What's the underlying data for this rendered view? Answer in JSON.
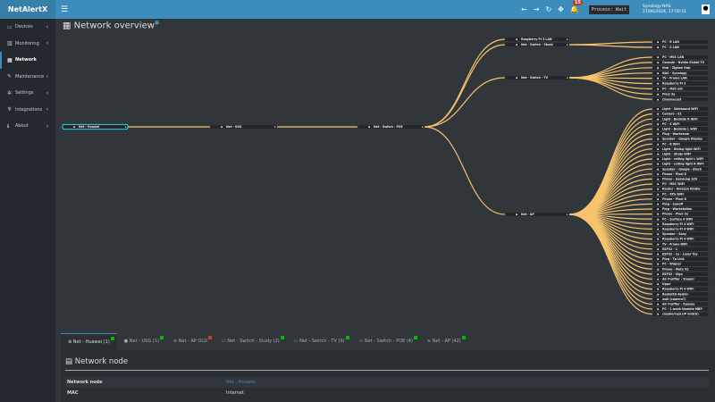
{
  "header": {
    "logo": "NetAlertX",
    "menu_icon": "hamburger-icon",
    "notifications": "15",
    "process": "Process: Wait",
    "host": "Synology-NAS",
    "datetime": "27/06/2024, 17:50:51"
  },
  "sidebar": {
    "items": [
      {
        "label": "Devices",
        "icon": "laptop-icon"
      },
      {
        "label": "Monitoring",
        "icon": "chart-icon"
      },
      {
        "label": "Network",
        "icon": "network-icon",
        "active": true
      },
      {
        "label": "Maintenance",
        "icon": "wrench-icon"
      },
      {
        "label": "Settings",
        "icon": "gear-icon"
      },
      {
        "label": "Integrations",
        "icon": "plug-icon"
      },
      {
        "label": "About",
        "icon": "info-icon"
      }
    ]
  },
  "page": {
    "title": "Network overview"
  },
  "colors": {
    "link": "#f7c46c",
    "accent": "#3c8dbc",
    "selected": "#2bd5e0",
    "online": "#00bb00",
    "offline": "#dd3333"
  },
  "tree": {
    "root": "Net - Huawei",
    "usg": "Net - USG",
    "poe": "Net - Switch - POE",
    "poe_children": [
      "Raspberry Pi 3 LAN",
      "Net - Switch - Study",
      "Net - Switch - TV",
      "Net - AP"
    ],
    "study_children": [
      "PC - R LAN",
      "PC - S LAN"
    ],
    "tv_children": [
      "PC - MSC LAN",
      "Console - Nvidia Shield TV",
      "Hub - Zigbee Hub",
      "NAS - Synology",
      "TV - Frame LAN",
      "Raspberry Pi 3",
      "PC - MSC old",
      "Pixel 3a",
      "Chromecast"
    ],
    "ap_children": [
      "Light - Sideboard WiFi",
      "Camera - E1",
      "Light - Bedside R WiFi",
      "PC - S WiFi",
      "Light - Bedside L WiFi",
      "Plug - Workroom",
      "Speaker - Google Display",
      "PC - R WiFi",
      "Light - Dining light WiFi",
      "Light - Study WiFi",
      "Light - ceiling light L WiFi",
      "Light - ceiling light R WiFi",
      "Speaker - Google - Black",
      "Phone - Pixel 6",
      "Phone - Samsung S20",
      "PC - MSC WiFi",
      "Router - Amazon Kindle",
      "PC - XPS WiFi",
      "Phone - Pixel 6",
      "Plug - Sonoff",
      "Plug - Workstation",
      "Phone - Pixel 3a",
      "PC - Surface 4 WiFi",
      "Raspberry Pi 4 WiFi",
      "Raspberry Pi 4 WiFi",
      "Speaker - Sony",
      "Raspberry Pi 4 WiFi",
      "TV - Frame WiFi",
      "ESP32 - 1",
      "ESP32 - 1a - Laser Toy",
      "Plug - Tp Link",
      "PC - Wiqner",
      "Phone - Moto X2",
      "ESP32 - Vigo",
      "Air Purifier - Xiaomi",
      "Oppo",
      "Raspberry Pi 4 WiFi",
      "RedmiXA Redmi",
      "wall (camera?)",
      "Air Purifier - Xpozee",
      "PC - 1 week Nomble MBP",
      "raspberrypi (IP match)"
    ]
  },
  "tabs": [
    {
      "label": "Net - Huawei (1)",
      "icon": "globe-icon",
      "online": true,
      "active": true
    },
    {
      "label": "Net - USG (1)",
      "icon": "shield-icon",
      "online": true
    },
    {
      "label": "Net - AP OLD",
      "icon": "wifi-icon",
      "online": false
    },
    {
      "label": "Net - Switch - Study (2)",
      "icon": "switch-icon",
      "online": true
    },
    {
      "label": "Net - Switch - TV (9)",
      "icon": "switch-icon",
      "online": true
    },
    {
      "label": "Net - Switch - POE (4)",
      "icon": "switch-icon",
      "online": true
    },
    {
      "label": "Net - AP (42)",
      "icon": "wifi-icon",
      "online": true
    }
  ],
  "panel": {
    "title": "Network node",
    "rows": [
      {
        "key": "Network node",
        "value": "Net - Huawei"
      },
      {
        "key": "MAC",
        "value": "Internet"
      }
    ]
  }
}
